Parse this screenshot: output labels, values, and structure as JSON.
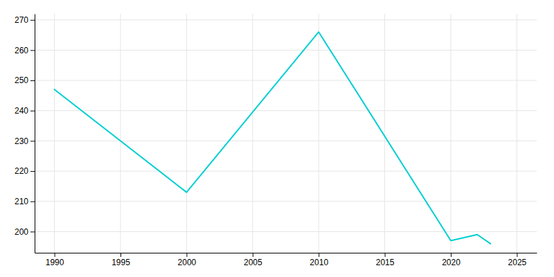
{
  "chart_data": {
    "type": "line",
    "x": [
      1990,
      2000,
      2010,
      2020,
      2022,
      2023
    ],
    "values": [
      247,
      213,
      266,
      197,
      199,
      196
    ],
    "color": "#00CED1",
    "xlim": [
      1988.5,
      2026.5
    ],
    "ylim": [
      193,
      272
    ],
    "xticks": [
      1990,
      1995,
      2000,
      2005,
      2010,
      2015,
      2020,
      2025
    ],
    "yticks": [
      200,
      210,
      220,
      230,
      240,
      250,
      260,
      270
    ],
    "grid": true
  }
}
